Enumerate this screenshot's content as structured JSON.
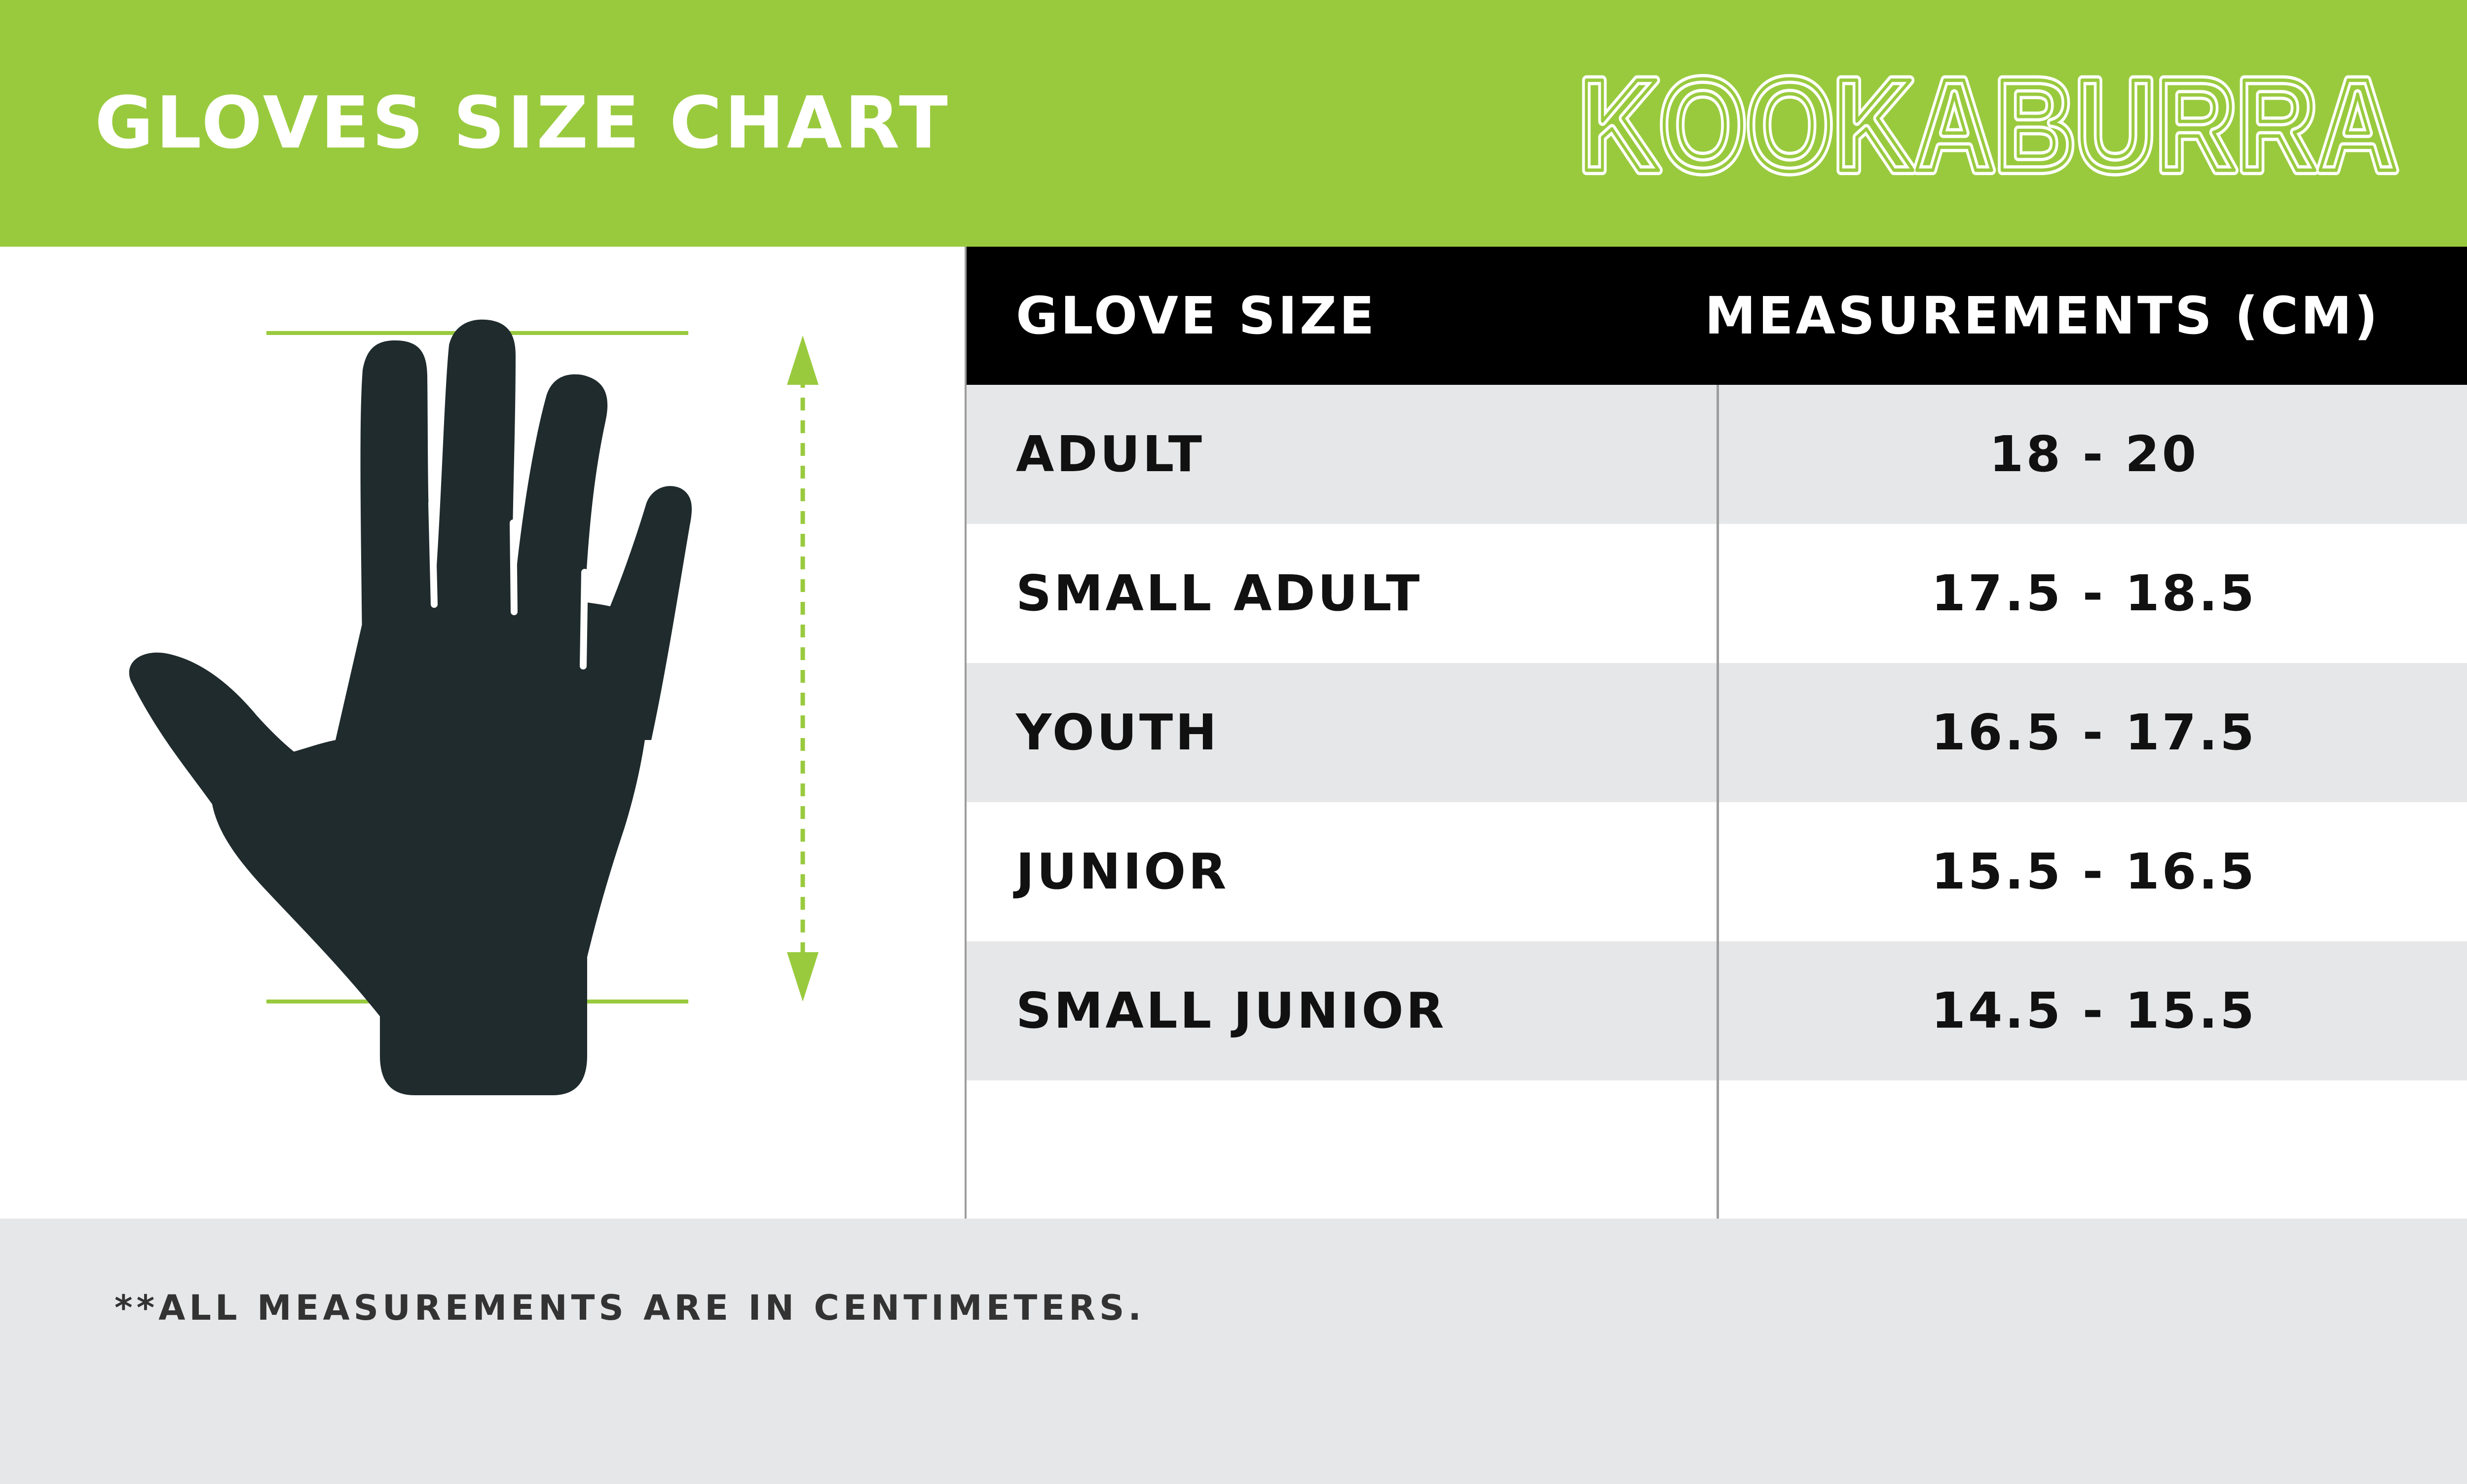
{
  "header": {
    "title": "GLOVES SIZE CHART",
    "brand_logo": "KOOKABURRA"
  },
  "illustration": {
    "icon": "hand-measurement-icon",
    "colors": {
      "hand": "#1f2b2d",
      "guide": "#99ca3e"
    }
  },
  "table": {
    "headers": {
      "size": "GLOVE SIZE",
      "measurement": "MEASUREMENTS (CM)"
    },
    "rows": [
      {
        "size": "ADULT",
        "measurement": "18 - 20"
      },
      {
        "size": "SMALL ADULT",
        "measurement": "17.5 - 18.5"
      },
      {
        "size": "YOUTH",
        "measurement": "16.5 - 17.5"
      },
      {
        "size": "JUNIOR",
        "measurement": "15.5 - 16.5"
      },
      {
        "size": "SMALL JUNIOR",
        "measurement": "14.5 - 15.5"
      },
      {
        "size": "",
        "measurement": ""
      }
    ]
  },
  "footer": {
    "note": "**ALL MEASUREMENTS ARE IN CENTIMETERS."
  },
  "colors": {
    "brand_green": "#99ca3e",
    "header_black": "#000000",
    "row_grey": "#e6e7e8",
    "divider_grey": "#9d9d9d"
  }
}
